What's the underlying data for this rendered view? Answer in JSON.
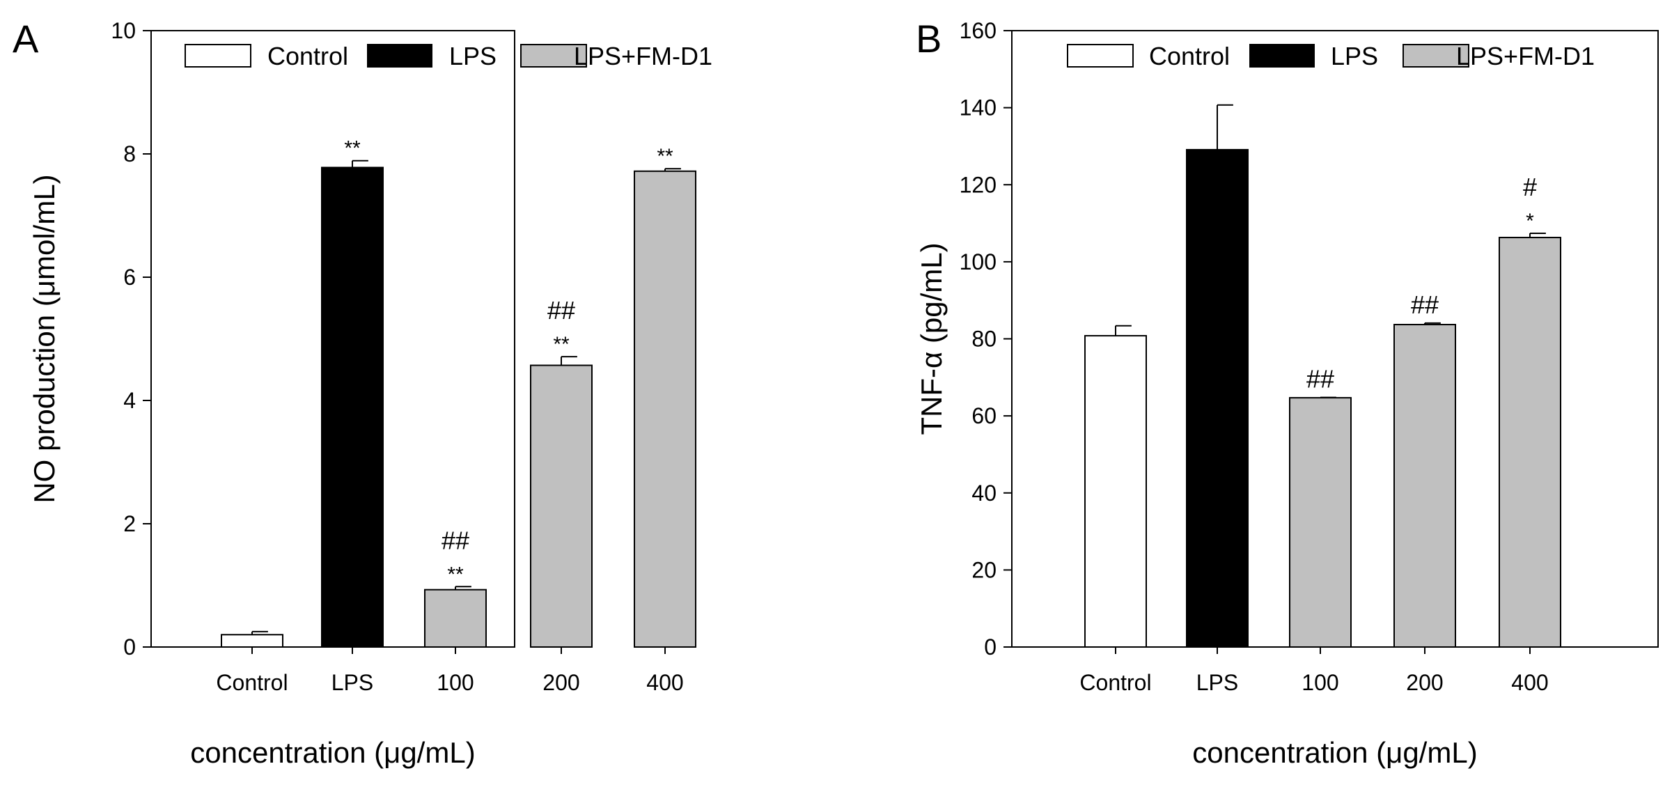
{
  "chart_data": [
    {
      "type": "bar",
      "panel": "A",
      "ylabel": "NO production (μmol/mL)",
      "xlabel": "concentration (μg/mL)",
      "ylim": [
        0,
        10
      ],
      "yticks": [
        "0",
        "2",
        "4",
        "6",
        "8",
        "10"
      ],
      "ytick_values": [
        0,
        2,
        4,
        6,
        8,
        10
      ],
      "categories": [
        "Control",
        "LPS",
        "100",
        "200",
        "400"
      ],
      "bar_groups": [
        "Control",
        "LPS",
        "LPS+FM-D1",
        "LPS+FM-D1",
        "LPS+FM-D1"
      ],
      "values": [
        0.2,
        7.78,
        0.93,
        4.57,
        7.72
      ],
      "errors": [
        0.05,
        0.11,
        0.05,
        0.14,
        0.04
      ],
      "annotations": [
        [],
        [
          "**"
        ],
        [
          "##",
          "**"
        ],
        [
          "##",
          "**"
        ],
        [
          "**"
        ]
      ],
      "legend": {
        "placement": "top",
        "entries": [
          {
            "label": "Control",
            "color": "#ffffff"
          },
          {
            "label": "LPS",
            "color": "#000000"
          },
          {
            "label": "LPS+FM-D1",
            "color": "#c0c0c0"
          }
        ]
      }
    },
    {
      "type": "bar",
      "panel": "B",
      "ylabel": "TNF-α (pg/mL)",
      "xlabel": "concentration (μg/mL)",
      "ylim": [
        0,
        160
      ],
      "yticks": [
        "0",
        "20",
        "40",
        "60",
        "80",
        "100",
        "120",
        "140",
        "160"
      ],
      "ytick_values": [
        0,
        20,
        40,
        60,
        80,
        100,
        120,
        140,
        160
      ],
      "categories": [
        "Control",
        "LPS",
        "100",
        "200",
        "400"
      ],
      "bar_groups": [
        "Control",
        "LPS",
        "LPS+FM-D1",
        "LPS+FM-D1",
        "LPS+FM-D1"
      ],
      "values": [
        80.8,
        129.1,
        64.7,
        83.7,
        106.3
      ],
      "errors": [
        2.6,
        11.6,
        0.1,
        0.4,
        1.1
      ],
      "annotations": [
        [],
        [],
        [
          "##"
        ],
        [
          "##"
        ],
        [
          "#",
          "*"
        ]
      ],
      "legend": {
        "placement": "top",
        "entries": [
          {
            "label": "Control",
            "color": "#ffffff"
          },
          {
            "label": "LPS",
            "color": "#000000"
          },
          {
            "label": "LPS+FM-D1",
            "color": "#c0c0c0"
          }
        ]
      }
    }
  ]
}
